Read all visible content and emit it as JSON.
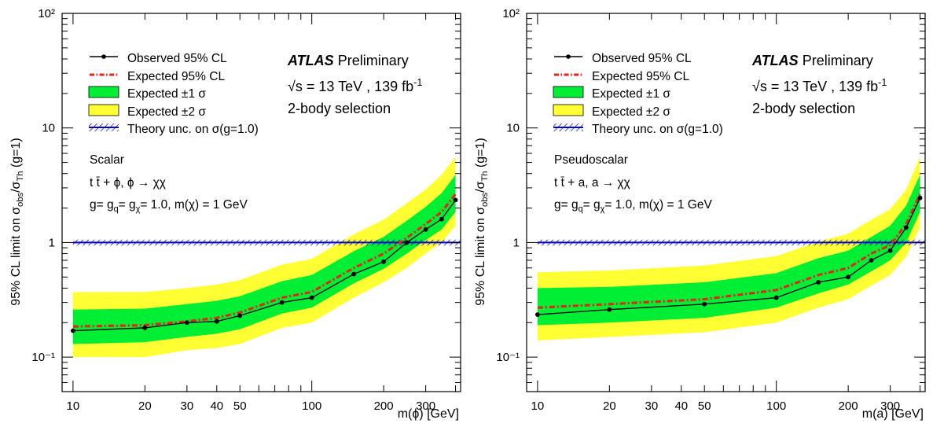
{
  "chart_data": [
    {
      "type": "line",
      "panel": "left",
      "ylabel": "95% CL limit on σobs/σTh (g=1)",
      "xlabel": "m(ϕ) [GeV]",
      "x_scale": "log",
      "y_scale": "log",
      "xlim": [
        9,
        420
      ],
      "ylim": [
        0.05,
        100
      ],
      "x_ticks": [
        "10",
        "20",
        "30",
        "40",
        "50",
        "100",
        "200",
        "300"
      ],
      "y_ticks": [
        "10⁻¹",
        "1",
        "10",
        "10²"
      ],
      "grid": false,
      "legend_position": "top-left",
      "legend": [
        "Observed 95% CL",
        "Expected 95% CL",
        "Expected ±1 σ",
        "Expected ±2 σ",
        "Theory unc. on σ(g=1.0)"
      ],
      "atlas_label": "ATLAS",
      "atlas_status": "Preliminary",
      "energy": "√s = 13 TeV , 139 fb",
      "energy_sup": "-1",
      "selection": "2-body selection",
      "model": "Scalar",
      "process": "t t̄ + ϕ, ϕ → χχ",
      "couplings": "g= gq= gχ= 1.0, m(χ) = 1 GeV",
      "x": [
        10,
        20,
        30,
        40,
        50,
        75,
        100,
        150,
        200,
        250,
        300,
        350,
        400
      ],
      "observed": [
        0.17,
        0.18,
        0.2,
        0.205,
        0.23,
        0.3,
        0.33,
        0.53,
        0.68,
        1.0,
        1.3,
        1.6,
        2.35
      ],
      "expected": [
        0.185,
        0.19,
        0.205,
        0.22,
        0.245,
        0.33,
        0.37,
        0.6,
        0.8,
        1.1,
        1.45,
        1.85,
        2.65
      ],
      "band_1sigma": {
        "low": [
          0.13,
          0.135,
          0.15,
          0.16,
          0.175,
          0.24,
          0.27,
          0.44,
          0.59,
          0.8,
          1.05,
          1.3,
          1.85
        ],
        "high": [
          0.26,
          0.265,
          0.29,
          0.31,
          0.34,
          0.46,
          0.52,
          0.84,
          1.12,
          1.55,
          2.05,
          2.7,
          3.9
        ]
      },
      "band_2sigma": {
        "low": [
          0.1,
          0.1,
          0.115,
          0.12,
          0.13,
          0.18,
          0.2,
          0.33,
          0.45,
          0.6,
          0.8,
          1.0,
          1.4
        ],
        "high": [
          0.37,
          0.37,
          0.4,
          0.43,
          0.47,
          0.64,
          0.72,
          1.18,
          1.58,
          2.2,
          2.9,
          3.9,
          5.6
        ]
      },
      "theory_band": [
        0.94,
        1.06
      ]
    },
    {
      "type": "line",
      "panel": "right",
      "ylabel": "95% CL limit on σobs/σTh (g=1)",
      "xlabel": "m(a) [GeV]",
      "x_scale": "log",
      "y_scale": "log",
      "xlim": [
        9,
        420
      ],
      "ylim": [
        0.05,
        100
      ],
      "x_ticks": [
        "10",
        "20",
        "30",
        "40",
        "50",
        "100",
        "200",
        "300"
      ],
      "y_ticks": [
        "10⁻¹",
        "1",
        "10",
        "10²"
      ],
      "grid": false,
      "legend_position": "top-left",
      "legend": [
        "Observed 95% CL",
        "Expected 95% CL",
        "Expected ±1 σ",
        "Expected ±2 σ",
        "Theory unc. on σ(g=1.0)"
      ],
      "atlas_label": "ATLAS",
      "atlas_status": "Preliminary",
      "energy": "√s = 13 TeV , 139 fb",
      "energy_sup": "-1",
      "selection": "2-body selection",
      "model": "Pseudoscalar",
      "process": "t t̄ + a, a → χχ",
      "couplings": "g= gq= gχ= 1.0, m(χ) = 1 GeV",
      "x": [
        10,
        20,
        50,
        100,
        150,
        200,
        250,
        300,
        350,
        400
      ],
      "observed": [
        0.235,
        0.26,
        0.29,
        0.33,
        0.45,
        0.5,
        0.7,
        0.85,
        1.35,
        2.45
      ],
      "expected": [
        0.27,
        0.29,
        0.32,
        0.385,
        0.52,
        0.6,
        0.8,
        0.95,
        1.45,
        2.65
      ],
      "band_1sigma": {
        "low": [
          0.19,
          0.2,
          0.22,
          0.27,
          0.36,
          0.43,
          0.56,
          0.7,
          1.0,
          1.85
        ],
        "high": [
          0.4,
          0.41,
          0.45,
          0.54,
          0.73,
          0.85,
          1.12,
          1.4,
          2.1,
          3.9
        ]
      },
      "band_2sigma": {
        "low": [
          0.14,
          0.15,
          0.165,
          0.2,
          0.27,
          0.32,
          0.42,
          0.52,
          0.75,
          1.35
        ],
        "high": [
          0.55,
          0.57,
          0.63,
          0.76,
          1.02,
          1.19,
          1.58,
          1.95,
          2.9,
          5.6
        ]
      },
      "theory_band": [
        0.94,
        1.06
      ]
    }
  ],
  "colors": {
    "band_2sigma": "#ffff33",
    "band_1sigma": "#00ee33",
    "expected": "#e8221b",
    "observed": "#000000",
    "theory": "#0000cc"
  }
}
